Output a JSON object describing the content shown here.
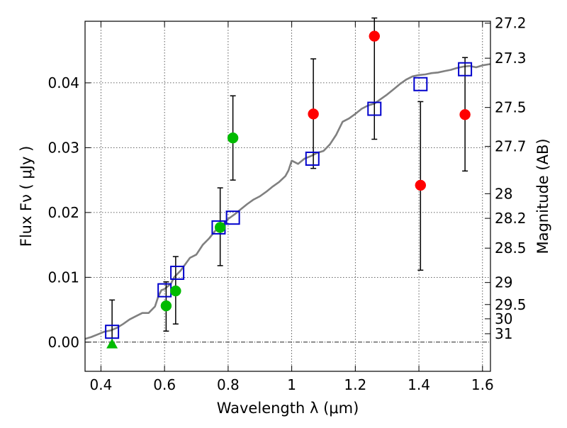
{
  "chart_data": {
    "type": "scatter",
    "xlabel": "Wavelength  λ (μm)",
    "ylabel": "Flux  Fν  ( μJy )",
    "y2label": "Magnitude (AB)",
    "xlim": [
      0.35,
      1.625
    ],
    "ylim": [
      -0.0045,
      0.0495
    ],
    "xticks": [
      0.4,
      0.6,
      0.8,
      1.0,
      1.2,
      1.4,
      1.6
    ],
    "xtick_labels": [
      "0.4",
      "0.6",
      "0.8",
      "1",
      "1.2",
      "1.4",
      "1.6"
    ],
    "yticks": [
      0.0,
      0.01,
      0.02,
      0.03,
      0.04
    ],
    "ytick_labels": [
      "0.00",
      "0.01",
      "0.02",
      "0.03",
      "0.04"
    ],
    "y2ticks": [
      {
        "flux": 0.0492,
        "label": "27.2"
      },
      {
        "flux": 0.0438,
        "label": "27.3"
      },
      {
        "flux": 0.0362,
        "label": "27.5"
      },
      {
        "flux": 0.0302,
        "label": "27.7"
      },
      {
        "flux": 0.0229,
        "label": "28"
      },
      {
        "flux": 0.0191,
        "label": "28.2"
      },
      {
        "flux": 0.0145,
        "label": "28.5"
      },
      {
        "flux": 0.0092,
        "label": "29"
      },
      {
        "flux": 0.0058,
        "label": "29.5"
      },
      {
        "flux": 0.0036,
        "label": "30"
      },
      {
        "flux": 0.0013,
        "label": "31"
      }
    ],
    "grid": true,
    "zero_line": true,
    "colors": {
      "model": "#808080",
      "red": "#ff0000",
      "green": "#00bb00",
      "blue": "#0000cc",
      "errorbar": "#000000"
    },
    "series": [
      {
        "style": "line",
        "color": "#808080",
        "points": [
          [
            0.35,
            0.0005
          ],
          [
            0.37,
            0.0008
          ],
          [
            0.39,
            0.0012
          ],
          [
            0.41,
            0.0016
          ],
          [
            0.43,
            0.0018
          ],
          [
            0.45,
            0.0022
          ],
          [
            0.47,
            0.0028
          ],
          [
            0.49,
            0.0035
          ],
          [
            0.51,
            0.004
          ],
          [
            0.53,
            0.0045
          ],
          [
            0.55,
            0.0045
          ],
          [
            0.57,
            0.0055
          ],
          [
            0.58,
            0.007
          ],
          [
            0.59,
            0.008
          ],
          [
            0.6,
            0.0082
          ],
          [
            0.62,
            0.009
          ],
          [
            0.63,
            0.01
          ],
          [
            0.65,
            0.011
          ],
          [
            0.68,
            0.013
          ],
          [
            0.7,
            0.0135
          ],
          [
            0.72,
            0.015
          ],
          [
            0.74,
            0.016
          ],
          [
            0.76,
            0.0172
          ],
          [
            0.78,
            0.018
          ],
          [
            0.8,
            0.019
          ],
          [
            0.82,
            0.0197
          ],
          [
            0.84,
            0.0205
          ],
          [
            0.86,
            0.0213
          ],
          [
            0.88,
            0.022
          ],
          [
            0.9,
            0.0225
          ],
          [
            0.92,
            0.0232
          ],
          [
            0.94,
            0.024
          ],
          [
            0.96,
            0.0247
          ],
          [
            0.98,
            0.0256
          ],
          [
            0.99,
            0.0265
          ],
          [
            1.0,
            0.028
          ],
          [
            1.02,
            0.0275
          ],
          [
            1.04,
            0.0283
          ],
          [
            1.06,
            0.0287
          ],
          [
            1.08,
            0.0292
          ],
          [
            1.1,
            0.0295
          ],
          [
            1.12,
            0.0305
          ],
          [
            1.14,
            0.032
          ],
          [
            1.16,
            0.034
          ],
          [
            1.18,
            0.0345
          ],
          [
            1.2,
            0.0352
          ],
          [
            1.22,
            0.036
          ],
          [
            1.24,
            0.0365
          ],
          [
            1.26,
            0.0368
          ],
          [
            1.28,
            0.0375
          ],
          [
            1.3,
            0.0382
          ],
          [
            1.32,
            0.039
          ],
          [
            1.34,
            0.0398
          ],
          [
            1.36,
            0.0405
          ],
          [
            1.38,
            0.041
          ],
          [
            1.4,
            0.0412
          ],
          [
            1.42,
            0.0413
          ],
          [
            1.44,
            0.0415
          ],
          [
            1.46,
            0.0416
          ],
          [
            1.48,
            0.0418
          ],
          [
            1.5,
            0.042
          ],
          [
            1.52,
            0.0423
          ],
          [
            1.54,
            0.0425
          ],
          [
            1.56,
            0.0426
          ],
          [
            1.58,
            0.0424
          ],
          [
            1.6,
            0.0427
          ],
          [
            1.625,
            0.0429
          ]
        ]
      },
      {
        "style": "errorbar",
        "color": "#000000",
        "bars": [
          {
            "x": 0.435,
            "low": -0.0002,
            "high": 0.0065
          },
          {
            "x": 0.605,
            "low": 0.0017,
            "high": 0.0093
          },
          {
            "x": 0.635,
            "low": 0.0028,
            "high": 0.0132
          },
          {
            "x": 0.775,
            "low": 0.0118,
            "high": 0.0238
          },
          {
            "x": 0.815,
            "low": 0.025,
            "high": 0.038
          },
          {
            "x": 1.068,
            "low": 0.0268,
            "high": 0.0437
          },
          {
            "x": 1.26,
            "low": 0.0313,
            "high": 0.05
          },
          {
            "x": 1.405,
            "low": 0.0111,
            "high": 0.0371
          },
          {
            "x": 1.545,
            "low": 0.0264,
            "high": 0.0439
          }
        ]
      },
      {
        "style": "square",
        "color": "#0000cc",
        "points": [
          [
            0.435,
            0.0016
          ],
          [
            0.6,
            0.008
          ],
          [
            0.64,
            0.0107
          ],
          [
            0.77,
            0.0177
          ],
          [
            0.815,
            0.0192
          ],
          [
            1.065,
            0.0283
          ],
          [
            1.26,
            0.036
          ],
          [
            1.405,
            0.0398
          ],
          [
            1.545,
            0.0421
          ]
        ]
      },
      {
        "style": "circle",
        "color": "#ff0000",
        "points": [
          [
            1.068,
            0.0352
          ],
          [
            1.26,
            0.0472
          ],
          [
            1.405,
            0.0242
          ],
          [
            1.545,
            0.0351
          ]
        ]
      },
      {
        "style": "circle",
        "color": "#00bb00",
        "points": [
          [
            0.605,
            0.0056
          ],
          [
            0.635,
            0.0079
          ],
          [
            0.775,
            0.0177
          ],
          [
            0.815,
            0.0315
          ]
        ]
      },
      {
        "style": "triangle",
        "color": "#00bb00",
        "points": [
          [
            0.435,
            -0.0003
          ]
        ]
      }
    ]
  }
}
